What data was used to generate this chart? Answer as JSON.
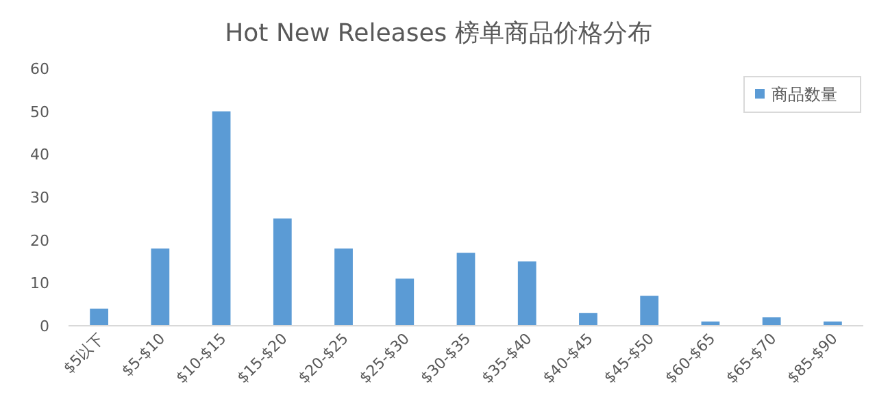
{
  "chart_data": {
    "type": "bar",
    "title": "Hot New Releases 榜单商品价格分布",
    "categories": [
      "$5以下",
      "$5-$10",
      "$10-$15",
      "$15-$20",
      "$20-$25",
      "$25-$30",
      "$30-$35",
      "$35-$40",
      "$40-$45",
      "$45-$50",
      "$60-$65",
      "$65-$70",
      "$85-$90"
    ],
    "series": [
      {
        "name": "商品数量",
        "color": "#5b9bd5",
        "values": [
          4,
          18,
          50,
          25,
          18,
          11,
          17,
          15,
          3,
          7,
          1,
          2,
          1
        ]
      }
    ],
    "ylim": [
      0,
      60
    ],
    "yticks": [
      0,
      10,
      20,
      30,
      40,
      50,
      60
    ],
    "legend": "top right",
    "grid": false
  }
}
